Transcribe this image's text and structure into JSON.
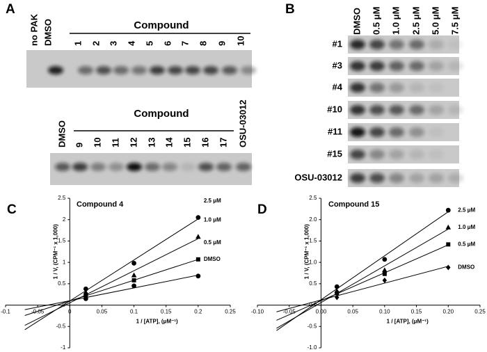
{
  "panel_a": {
    "label": "A",
    "top": {
      "lanes": [
        "no PAK",
        "DMSO"
      ],
      "group_label": "Compound",
      "group_lanes": [
        "1",
        "2",
        "3",
        "4",
        "5",
        "6",
        "7",
        "8",
        "9",
        "10"
      ]
    },
    "bottom": {
      "lanes": [
        "DMSO"
      ],
      "group_label": "Compound",
      "group_lanes": [
        "9",
        "10",
        "11",
        "12",
        "13",
        "14",
        "15",
        "16",
        "17"
      ],
      "extra_lane": "OSU-03012"
    }
  },
  "panel_b": {
    "label": "B",
    "columns": [
      "DMSO",
      "0.5 μM",
      "1.0 μM",
      "2.5 μM",
      "5.0 μM",
      "7.5 μM"
    ],
    "rows": [
      "#1",
      "#3",
      "#4",
      "#10",
      "#11",
      "#15",
      "OSU-03012"
    ]
  },
  "chart_data": [
    {
      "type": "scatter",
      "panel_label": "C",
      "title": "Compound 4",
      "x_label": "1 / [ATP], (μM⁻¹)",
      "y_label": "1 / V, (CPM⁻¹ x 1,000)",
      "xlim": [
        -0.1,
        0.25
      ],
      "ylim": [
        -1,
        2.5
      ],
      "xticks": [
        -0.1,
        -0.05,
        0,
        0.05,
        0.1,
        0.15,
        0.2,
        0.25
      ],
      "yticks": [
        -1,
        -0.5,
        0,
        0.5,
        1,
        1.5,
        2,
        2.5
      ],
      "x": [
        0.025,
        0.1,
        0.2
      ],
      "series": [
        {
          "name": "DMSO",
          "color": "#000000",
          "marker": "circle",
          "values": [
            0.15,
            0.45,
            0.68
          ]
        },
        {
          "name": "0.5 μM",
          "color": "#000000",
          "marker": "square",
          "values": [
            0.22,
            0.58,
            1.07
          ]
        },
        {
          "name": "1.0 μM",
          "color": "#000000",
          "marker": "triangle",
          "values": [
            0.3,
            0.7,
            1.6
          ]
        },
        {
          "name": "2.5 μM",
          "color": "#000000",
          "marker": "circle",
          "values": [
            0.38,
            0.98,
            2.05
          ]
        }
      ]
    },
    {
      "type": "scatter",
      "panel_label": "D",
      "title": "Compound 15",
      "x_label": "1 / [ATP], (μM⁻¹)",
      "y_label": "1 / V, (CPM⁻¹ x 1,000)",
      "xlim": [
        -0.1,
        0.25
      ],
      "ylim": [
        -1,
        2.5
      ],
      "xticks": [
        {
          "value": -0.1,
          "label": "-0.10"
        },
        {
          "value": -0.05,
          "label": "-0.05"
        },
        {
          "value": 0,
          "label": "0.00"
        },
        {
          "value": 0.05,
          "label": "0.05"
        },
        {
          "value": 0.1,
          "label": "0.10"
        },
        {
          "value": 0.15,
          "label": "0.15"
        },
        {
          "value": 0.2,
          "label": "0.20"
        },
        {
          "value": 0.25,
          "label": "0.25"
        }
      ],
      "yticks": [
        {
          "value": -1,
          "label": "-1.0"
        },
        {
          "value": -0.5,
          "label": "-0.5"
        },
        {
          "value": 0,
          "label": "0.0"
        },
        {
          "value": 0.5,
          "label": "0.5"
        },
        {
          "value": 1,
          "label": "1.0"
        },
        {
          "value": 1.5,
          "label": "1.5"
        },
        {
          "value": 2,
          "label": "2.0"
        },
        {
          "value": 2.5,
          "label": "2.5"
        }
      ],
      "x": [
        0.025,
        0.1,
        0.2
      ],
      "series": [
        {
          "name": "DMSO",
          "color": "#000000",
          "marker": "diamond",
          "values": [
            0.18,
            0.58,
            0.88
          ]
        },
        {
          "name": "0.5 μM",
          "color": "#000000",
          "marker": "square",
          "values": [
            0.28,
            0.73,
            1.42
          ]
        },
        {
          "name": "1.0 μM",
          "color": "#000000",
          "marker": "triangle",
          "values": [
            0.33,
            0.82,
            1.82
          ]
        },
        {
          "name": "2.5 μM",
          "color": "#000000",
          "marker": "circle",
          "values": [
            0.43,
            1.07,
            2.22
          ]
        }
      ]
    }
  ]
}
